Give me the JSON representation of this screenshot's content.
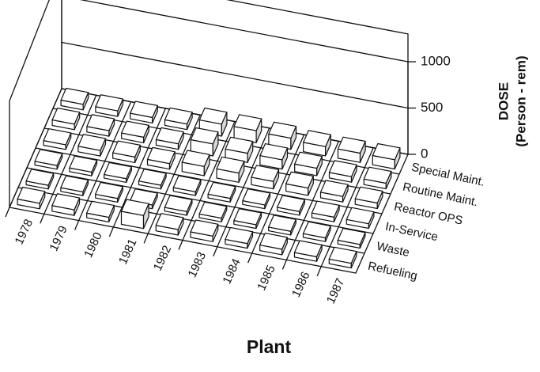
{
  "chart_data": {
    "type": "bar3d",
    "xlabel": "Plant",
    "zlabel": "DOSE",
    "zlabel2": "(Person - rem)",
    "categories": [
      "1978",
      "1979",
      "1980",
      "1981",
      "1982",
      "1983",
      "1984",
      "1985",
      "1986",
      "1987"
    ],
    "series": [
      {
        "name": "Refueling",
        "color": "#ffffff",
        "values": [
          60,
          60,
          50,
          140,
          60,
          60,
          50,
          60,
          50,
          50
        ]
      },
      {
        "name": "Waste",
        "color": "#ffffff",
        "values": [
          40,
          40,
          40,
          40,
          40,
          40,
          40,
          40,
          40,
          40
        ]
      },
      {
        "name": "In-Service",
        "color": "#ffffff",
        "values": [
          40,
          40,
          40,
          40,
          40,
          40,
          40,
          40,
          50,
          50
        ]
      },
      {
        "name": "Reactor OPS",
        "color": "#ffffff",
        "values": [
          50,
          60,
          60,
          60,
          100,
          100,
          80,
          80,
          60,
          60
        ]
      },
      {
        "name": "Routine Maint.",
        "color": "#ffffff",
        "values": [
          60,
          60,
          60,
          60,
          130,
          100,
          100,
          80,
          60,
          60
        ]
      },
      {
        "name": "Special Maint.",
        "color": "#ffffff",
        "values": [
          60,
          60,
          60,
          60,
          130,
          130,
          120,
          100,
          100,
          100
        ]
      }
    ],
    "zlim": [
      0,
      1000
    ],
    "zticks": [
      0,
      500,
      1000
    ]
  }
}
